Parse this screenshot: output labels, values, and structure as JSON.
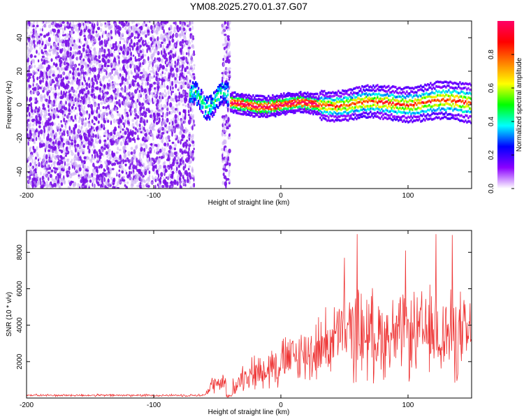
{
  "title": "YM08.2025.270.01.37.G07",
  "chart_data": [
    {
      "type": "heatmap",
      "name": "spectrogram",
      "xlabel": "Height of straight line (km)",
      "ylabel": "Frequency (Hz)",
      "xlim": [
        -200,
        150
      ],
      "ylim": [
        -50,
        50
      ],
      "xticks": [
        -200,
        -100,
        0,
        100
      ],
      "yticks": [
        -40,
        -20,
        0,
        20,
        40
      ],
      "colorbar": {
        "label": "Normalized spectral amplitude",
        "range": [
          0,
          1
        ],
        "ticks": [
          0.0,
          0.2,
          0.4,
          0.6,
          0.8
        ],
        "tick_labels": [
          "0.0",
          "0.2",
          "0.4",
          "0.6",
          "0.8"
        ],
        "colormap": [
          "#ffffff",
          "#8b00ff",
          "#0000ff",
          "#00ffff",
          "#00ff00",
          "#ffff00",
          "#ff8000",
          "#ff0000",
          "#ff0066"
        ]
      },
      "regions": [
        {
          "label": "noise",
          "x": [
            -200,
            -68
          ],
          "f": [
            -50,
            50
          ],
          "amplitude": 0.05
        },
        {
          "label": "noise",
          "x": [
            -46,
            -40
          ],
          "f": [
            -50,
            50
          ],
          "amplitude": 0.05
        },
        {
          "label": "signal-onset",
          "x": [
            -72,
            -42
          ],
          "f_center": 3,
          "amplitude": 0.35
        },
        {
          "label": "signal",
          "x": [
            -40,
            150
          ],
          "f_center": 0,
          "amplitude": 0.8
        }
      ]
    },
    {
      "type": "line",
      "name": "snr",
      "xlabel": "Height of straight line (km)",
      "ylabel": "SNR (10 * v/v)",
      "xlim": [
        -200,
        150
      ],
      "ylim": [
        0,
        9200
      ],
      "xticks": [
        -200,
        -100,
        0,
        100
      ],
      "yticks": [
        2000,
        4000,
        6000,
        8000
      ],
      "color": "#ee3333",
      "envelope": {
        "x": [
          -200,
          -60,
          -55,
          -45,
          -40,
          -30,
          -20,
          -10,
          0,
          10,
          20,
          30,
          40,
          50,
          60,
          70,
          80,
          90,
          100,
          110,
          120,
          130,
          140,
          150
        ],
        "base": [
          150,
          150,
          700,
          800,
          400,
          1200,
          1400,
          1700,
          2000,
          2200,
          2400,
          2700,
          3200,
          3600,
          3600,
          3500,
          3400,
          3400,
          3400,
          3500,
          3600,
          3500,
          3400,
          3300
        ],
        "range": [
          80,
          80,
          600,
          700,
          500,
          900,
          1200,
          1500,
          1700,
          1800,
          2000,
          2200,
          2400,
          2800,
          3200,
          3000,
          2800,
          2800,
          2800,
          2900,
          3000,
          3000,
          3000,
          2800
        ]
      },
      "peaks": [
        {
          "x": 60,
          "y": 9000
        },
        {
          "x": 122,
          "y": 9000
        },
        {
          "x": 135,
          "y": 8950
        },
        {
          "x": 50,
          "y": 7700
        },
        {
          "x": 98,
          "y": 8100
        }
      ]
    }
  ]
}
